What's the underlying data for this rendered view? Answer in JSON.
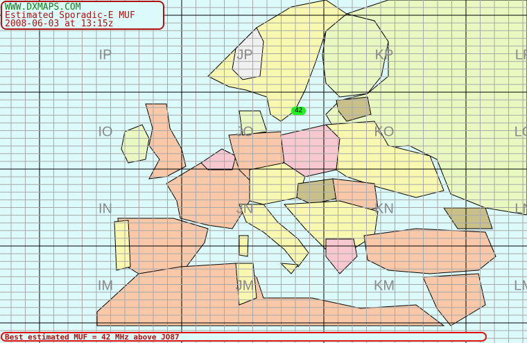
{
  "header": {
    "site": "WWW.DXMAPS.COM",
    "title": "Estimated Sporadic-E MUF",
    "timestamp": "2008-06-03 at 13:15z"
  },
  "locators": [
    {
      "label": "IP",
      "col": 0,
      "row": 0
    },
    {
      "label": "JP",
      "col": 1,
      "row": 0
    },
    {
      "label": "KP",
      "col": 2,
      "row": 0
    },
    {
      "label": "LP",
      "col": 3,
      "row": 0
    },
    {
      "label": "IO",
      "col": 0,
      "row": 1
    },
    {
      "label": "JO",
      "col": 1,
      "row": 1
    },
    {
      "label": "KO",
      "col": 2,
      "row": 1
    },
    {
      "label": "LO",
      "col": 3,
      "row": 1
    },
    {
      "label": "IN",
      "col": 0,
      "row": 2
    },
    {
      "label": "JN",
      "col": 1,
      "row": 2
    },
    {
      "label": "KN",
      "col": 2,
      "row": 2
    },
    {
      "label": "LN",
      "col": 3,
      "row": 2
    },
    {
      "label": "IM",
      "col": 0,
      "row": 3
    },
    {
      "label": "JM",
      "col": 1,
      "row": 3
    },
    {
      "label": "KM",
      "col": 2,
      "row": 3
    },
    {
      "label": "LM",
      "col": 3,
      "row": 3
    }
  ],
  "muf_marker": {
    "value": "42",
    "locator": "JO87",
    "color": "#22ee22"
  },
  "footer": {
    "status": "Best estimated MUF = 42 MHz above JO87"
  },
  "colors": {
    "sea": "#dcfafa",
    "grid_minor": "#a8a8a8",
    "grid_major": "#000000",
    "title_border": "#b01010"
  }
}
